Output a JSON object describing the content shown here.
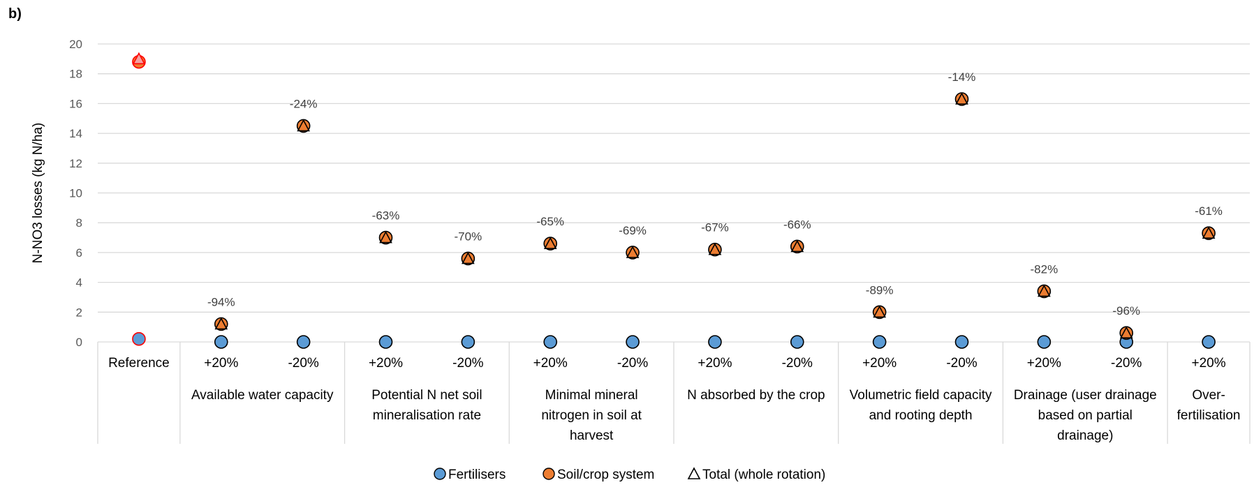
{
  "panel_label": "b)",
  "chart_data": {
    "type": "scatter",
    "title": "",
    "ylabel": "N-NO3 losses (kg N/ha)",
    "ylim": [
      0,
      20
    ],
    "yticks": [
      0,
      2,
      4,
      6,
      8,
      10,
      12,
      14,
      16,
      18,
      20
    ],
    "grid": true,
    "legend_position": "bottom",
    "categories": [
      "Reference",
      "+20%",
      "-20%",
      "+20%",
      "-20%",
      "+20%",
      "-20%",
      "+20%",
      "-20%",
      "+20%",
      "-20%",
      "+20%",
      "-20%",
      "+20%"
    ],
    "groups": [
      {
        "lines": [
          "Available water capacity"
        ],
        "start": 1,
        "end": 2
      },
      {
        "lines": [
          "Potential N net soil",
          "mineralisation rate"
        ],
        "start": 3,
        "end": 4
      },
      {
        "lines": [
          "Minimal mineral",
          "nitrogen in soil at",
          "harvest"
        ],
        "start": 5,
        "end": 6
      },
      {
        "lines": [
          "N absorbed by the crop"
        ],
        "start": 7,
        "end": 8
      },
      {
        "lines": [
          "Volumetric field capacity",
          "and rooting depth"
        ],
        "start": 9,
        "end": 10
      },
      {
        "lines": [
          "Drainage (user drainage",
          "based on  partial",
          "drainage)"
        ],
        "start": 11,
        "end": 12
      },
      {
        "lines": [
          "Over-",
          "fertilisation"
        ],
        "start": 13,
        "end": 13
      }
    ],
    "series": [
      {
        "name": "Fertilisers",
        "color": "#5b9bd5",
        "marker": "circle",
        "values": [
          0.2,
          0,
          0,
          0,
          0,
          0,
          0,
          0,
          0,
          0,
          0,
          0,
          0,
          0
        ]
      },
      {
        "name": "Soil/crop system",
        "color": "#ed7d31",
        "marker": "circle",
        "values": [
          18.8,
          1.2,
          14.5,
          7.0,
          5.6,
          6.6,
          6.0,
          6.2,
          6.4,
          2.0,
          16.3,
          3.4,
          0.6,
          7.3
        ]
      },
      {
        "name": "Total (whole rotation)",
        "color": "#000000",
        "marker": "triangle",
        "values": [
          19.0,
          1.2,
          14.5,
          7.0,
          5.6,
          6.6,
          6.0,
          6.2,
          6.4,
          2.0,
          16.3,
          3.4,
          0.6,
          7.3
        ]
      }
    ],
    "annotations": [
      "",
      "-94%",
      "-24%",
      "-63%",
      "-70%",
      "-65%",
      "-69%",
      "-67%",
      "-66%",
      "-89%",
      "-14%",
      "-82%",
      "-96%",
      "-61%"
    ],
    "reference_highlight_color": "#ff0000"
  }
}
